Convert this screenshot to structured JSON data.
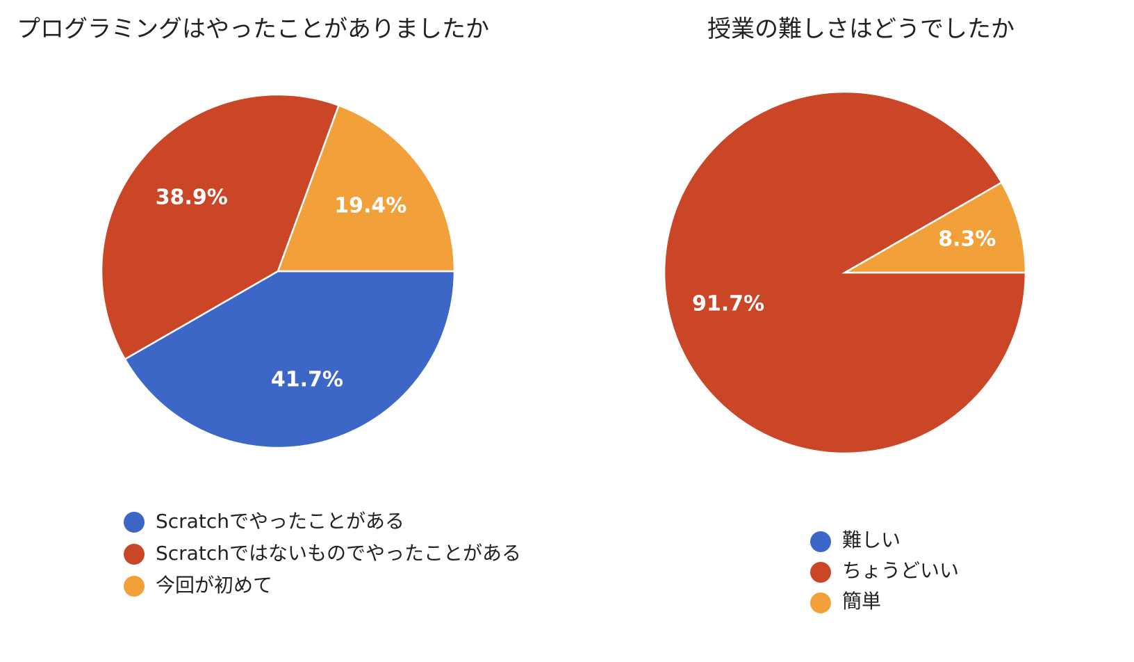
{
  "chart_data": [
    {
      "type": "pie",
      "title": "プログラミングはやったことがありましたか",
      "categories": [
        "Scratchでやったことがある",
        "Scratchではないものでやったことがある",
        "今回が初めて"
      ],
      "values": [
        41.7,
        38.9,
        19.4
      ],
      "data_labels": [
        "41.7%",
        "38.9%",
        "19.4%"
      ],
      "colors": [
        "#3d67c7",
        "#cb4527",
        "#f2a03a"
      ],
      "legend": "bottom"
    },
    {
      "type": "pie",
      "title": "授業の難しさはどうでしたか",
      "categories": [
        "難しい",
        "ちょうどいい",
        "簡単"
      ],
      "values": [
        0,
        91.7,
        8.3
      ],
      "data_labels": [
        "",
        "91.7%",
        "8.3%"
      ],
      "colors": [
        "#3d67c7",
        "#cb4527",
        "#f2a03a"
      ],
      "legend": "bottom"
    }
  ]
}
